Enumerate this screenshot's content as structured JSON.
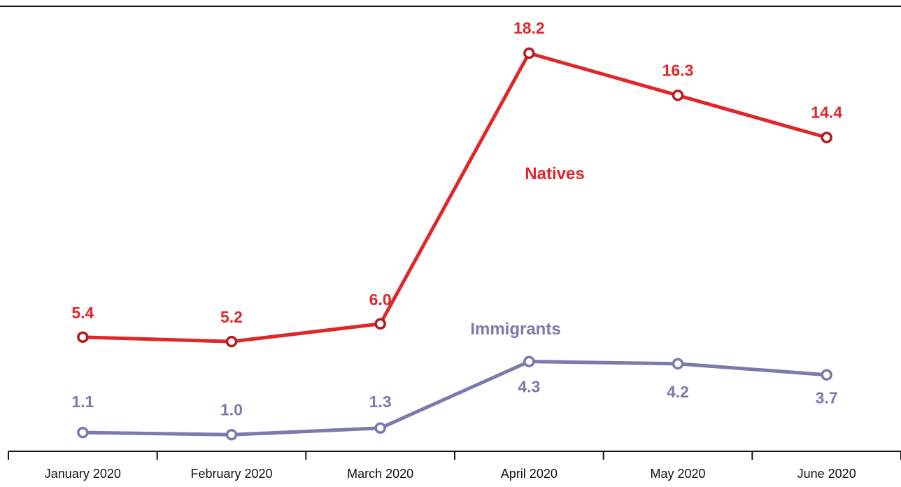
{
  "chart_data": {
    "type": "line",
    "categories": [
      "January 2020",
      "February 2020",
      "March 2020",
      "April 2020",
      "May 2020",
      "June 2020"
    ],
    "series": [
      {
        "name": "Natives",
        "values": [
          5.4,
          5.2,
          6.0,
          18.2,
          16.3,
          14.4
        ],
        "labels": [
          "5.4",
          "5.2",
          "6.0",
          "18.2",
          "16.3",
          "14.4"
        ],
        "color": "#e0262b",
        "marker_color": "#b01c22"
      },
      {
        "name": "Immigrants",
        "values": [
          1.1,
          1.0,
          1.3,
          4.3,
          4.2,
          3.7
        ],
        "labels": [
          "1.1",
          "1.0",
          "1.3",
          "4.3",
          "4.2",
          "3.7"
        ],
        "color": "#7a7aac",
        "marker_color": "#7a7aac"
      }
    ],
    "title": "",
    "xlabel": "",
    "ylabel": "",
    "ylim": [
      0,
      20
    ],
    "grid": false,
    "legend": "none (series named by inline labels)"
  }
}
